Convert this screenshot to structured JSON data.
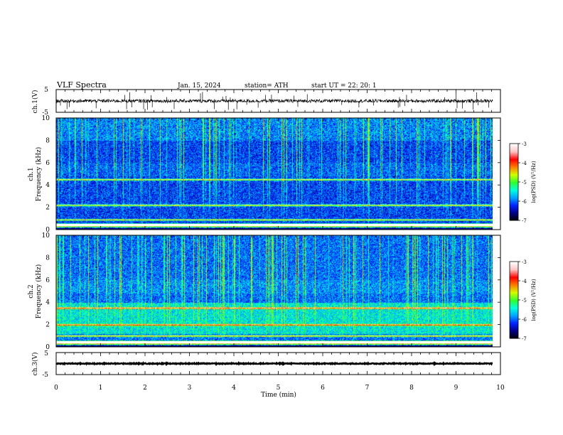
{
  "header": {
    "title": "VLF  Spectra",
    "date": "Jan.  15,  2024",
    "station": "station= ATH",
    "start_ut": "start  UT  =    22:  20:  1"
  },
  "chart_data": [
    {
      "type": "line",
      "panel": "ch1-waveform",
      "ylabel": "ch.1(V)",
      "ylim": [
        -5,
        5
      ],
      "yticks": [
        "5",
        "-5"
      ],
      "trace_level": 0,
      "trace_amplitude": 0.6,
      "spike_count": 45
    },
    {
      "type": "heatmap",
      "panel": "ch1-spectrogram",
      "ylabel": "ch.1",
      "ylabel2": "Frequency (kHz)",
      "ylim": [
        0,
        10
      ],
      "yticks": [
        "0",
        "2",
        "4",
        "6",
        "8",
        "10"
      ],
      "colorbar": {
        "label": "log(PSD) (V²/Hz)",
        "ticks": [
          "-3",
          "-4",
          "-5",
          "-6",
          "-7"
        ],
        "range": [
          -7,
          -3
        ]
      },
      "strong_bands_khz": [
        0.3,
        0.5,
        0.9,
        2.2,
        4.5
      ],
      "vertical_streaks": true
    },
    {
      "type": "heatmap",
      "panel": "ch2-spectrogram",
      "ylabel": "ch.2",
      "ylabel2": "Frequency (kHz)",
      "ylim": [
        0,
        10
      ],
      "yticks": [
        "0",
        "2",
        "4",
        "6",
        "8",
        "10"
      ],
      "colorbar": {
        "label": "log(PSD) (V²/Hz)",
        "ticks": [
          "-3",
          "-4",
          "-5",
          "-6",
          "-7"
        ],
        "range": [
          -7,
          -3
        ]
      },
      "strong_bands_khz": [
        0.3,
        0.5,
        1.0,
        2.0,
        3.5
      ],
      "vertical_streaks": true
    },
    {
      "type": "line",
      "panel": "ch3-waveform",
      "ylabel": "ch.3(V)",
      "ylim": [
        -5,
        5
      ],
      "yticks": [
        "5",
        "-5"
      ],
      "trace_level": 0,
      "trace_amplitude": 0.2
    }
  ],
  "x_axis": {
    "label": "Time  (min)",
    "ticks": [
      "0",
      "1",
      "2",
      "3",
      "4",
      "5",
      "6",
      "7",
      "8",
      "9",
      "10"
    ],
    "xlim": [
      0,
      10
    ],
    "data_end": 9.83
  },
  "colors": {
    "background": "#ffffff",
    "axis": "#000000",
    "colormap": [
      "#000000",
      "#000080",
      "#0020ff",
      "#00a0ff",
      "#00ffe0",
      "#30ff30",
      "#d0ff00",
      "#ff8000",
      "#ff0000",
      "#ffc0c0",
      "#ffffff"
    ]
  }
}
